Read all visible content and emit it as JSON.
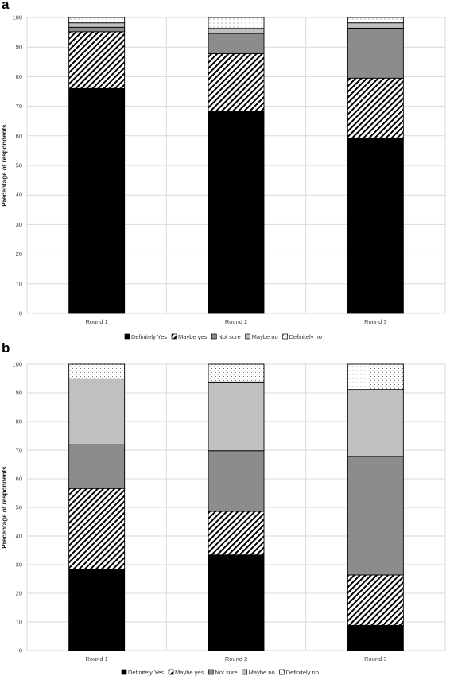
{
  "panels": [
    {
      "label": "a"
    },
    {
      "label": "b"
    }
  ],
  "colors": {
    "definitely_yes": "#000000",
    "maybe_yes": "hatch",
    "not_sure": "#8c8c8c",
    "maybe_no": "#c0c0c0",
    "definitely_no": "dots",
    "gridline": "#d9d9d9"
  },
  "chart_data": [
    {
      "type": "bar",
      "stacked": true,
      "title": "",
      "xlabel": "",
      "ylabel": "Precentage of respondents",
      "ylim": [
        0,
        100
      ],
      "yticks": [
        0,
        10,
        20,
        30,
        40,
        50,
        60,
        70,
        80,
        90,
        100
      ],
      "grid": true,
      "legend": "bottom",
      "categories": [
        "Round 1",
        "Round 2",
        "Round 3"
      ],
      "series": [
        {
          "name": "Definitely Yes",
          "key": "definitely_yes",
          "values": [
            76,
            68.3,
            59.3
          ]
        },
        {
          "name": "Maybe yes",
          "key": "maybe_yes",
          "values": [
            19.2,
            19.5,
            20.2
          ]
        },
        {
          "name": "Not sure",
          "key": "not_sure",
          "values": [
            1.5,
            6.8,
            16.9
          ]
        },
        {
          "name": "Maybe no",
          "key": "maybe_no",
          "values": [
            1.5,
            1.7,
            1.8
          ]
        },
        {
          "name": "Definitely no",
          "key": "definitely_no",
          "values": [
            1.8,
            3.7,
            1.8
          ]
        }
      ]
    },
    {
      "type": "bar",
      "stacked": true,
      "title": "",
      "xlabel": "",
      "ylabel": "Precentage of respondents",
      "ylim": [
        0,
        100
      ],
      "yticks": [
        0,
        10,
        20,
        30,
        40,
        50,
        60,
        70,
        80,
        90,
        100
      ],
      "grid": true,
      "legend": "bottom",
      "categories": [
        "Round 1",
        "Round 2",
        "Round 3"
      ],
      "series": [
        {
          "name": "Definitely Yes",
          "key": "definitely_yes",
          "values": [
            28.4,
            33.4,
            8.8
          ]
        },
        {
          "name": "Maybe yes",
          "key": "maybe_yes",
          "values": [
            28.2,
            15.2,
            17.6
          ]
        },
        {
          "name": "Not sure",
          "key": "not_sure",
          "values": [
            15.3,
            21.2,
            41.4
          ]
        },
        {
          "name": "Maybe no",
          "key": "maybe_no",
          "values": [
            23,
            24,
            23.4
          ]
        },
        {
          "name": "Definitely no",
          "key": "definitely_no",
          "values": [
            5.1,
            6.2,
            8.8
          ]
        }
      ]
    }
  ]
}
